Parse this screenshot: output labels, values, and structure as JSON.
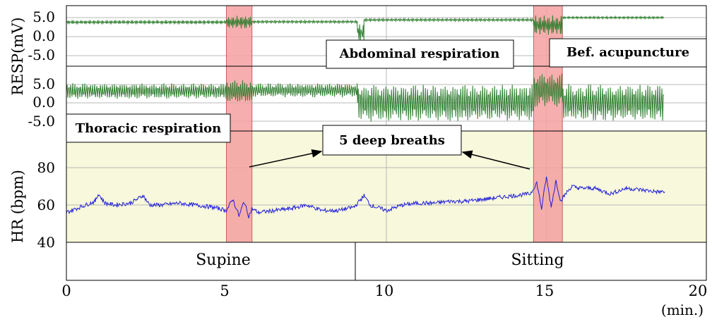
{
  "chart_data": {
    "type": "line",
    "x_axis": {
      "ticks": [
        "0",
        "5",
        "10",
        "15",
        "20"
      ],
      "unit_label": "(min.)",
      "range": [
        0,
        20
      ]
    },
    "panels": [
      {
        "id": "abdominal",
        "ylabel": "RESP(mV)",
        "ticks": [
          "5.0",
          "0.0",
          "-5.0"
        ],
        "tick_values": [
          5,
          0,
          -5
        ],
        "series_name": "Abdominal respiration",
        "color": "#2e7d2e",
        "segments": [
          {
            "x": [
              0,
              5.0
            ],
            "mean": 3.8,
            "amp": 0.45
          },
          {
            "x": [
              5.0,
              5.8
            ],
            "mean": 3.8,
            "amp": 1.6
          },
          {
            "x": [
              5.8,
              9.1
            ],
            "mean": 3.9,
            "amp": 0.35
          },
          {
            "x": [
              9.1,
              9.3
            ],
            "mean": 1.0,
            "amp": 2.2
          },
          {
            "x": [
              9.3,
              14.6
            ],
            "mean": 4.4,
            "amp": 0.35
          },
          {
            "x": [
              14.6,
              15.5
            ],
            "mean": 3.0,
            "amp": 2.4
          },
          {
            "x": [
              15.5,
              18.7
            ],
            "mean": 5.0,
            "amp": 0.3
          }
        ]
      },
      {
        "id": "thoracic",
        "ylabel": "RESP",
        "ticks": [
          "5.0",
          "0.0",
          "-5.0"
        ],
        "tick_values": [
          5,
          0,
          -5
        ],
        "series_name": "Thoracic respiration",
        "color": "#2e7d2e",
        "segments": [
          {
            "x": [
              0,
              5.0
            ],
            "mean": 3.2,
            "amp": 2.0
          },
          {
            "x": [
              5.0,
              5.8
            ],
            "mean": 3.0,
            "amp": 3.0
          },
          {
            "x": [
              5.8,
              9.1
            ],
            "mean": 3.4,
            "amp": 1.8
          },
          {
            "x": [
              9.1,
              14.6
            ],
            "mean": 0.0,
            "amp": 4.8
          },
          {
            "x": [
              14.6,
              15.5
            ],
            "mean": 3.5,
            "amp": 4.3
          },
          {
            "x": [
              15.5,
              18.7
            ],
            "mean": 0.0,
            "amp": 4.8
          }
        ]
      },
      {
        "id": "hr",
        "ylabel": "HR (bpm)",
        "ticks": [
          "80",
          "60",
          "40"
        ],
        "tick_values": [
          80,
          60,
          40
        ],
        "ylim": [
          40,
          98
        ],
        "series_name": "HR",
        "color": "#1f1fd8",
        "points": [
          [
            0,
            56
          ],
          [
            0.3,
            58
          ],
          [
            0.6,
            60
          ],
          [
            0.9,
            62
          ],
          [
            1.0,
            66
          ],
          [
            1.2,
            61
          ],
          [
            1.5,
            60
          ],
          [
            2.0,
            61
          ],
          [
            2.4,
            65
          ],
          [
            2.6,
            60
          ],
          [
            3.0,
            60
          ],
          [
            3.5,
            61
          ],
          [
            4.0,
            60
          ],
          [
            4.5,
            59
          ],
          [
            4.8,
            58
          ],
          [
            5.0,
            57
          ],
          [
            5.2,
            63
          ],
          [
            5.4,
            54
          ],
          [
            5.55,
            62
          ],
          [
            5.7,
            54
          ],
          [
            5.8,
            58
          ],
          [
            6.0,
            56
          ],
          [
            6.5,
            57
          ],
          [
            7.0,
            58
          ],
          [
            7.5,
            60
          ],
          [
            8.0,
            57
          ],
          [
            8.5,
            57
          ],
          [
            9.0,
            59
          ],
          [
            9.3,
            65
          ],
          [
            9.5,
            60
          ],
          [
            10.0,
            57
          ],
          [
            10.5,
            60
          ],
          [
            11.0,
            61
          ],
          [
            11.5,
            61
          ],
          [
            12.0,
            62
          ],
          [
            12.5,
            62
          ],
          [
            13.0,
            63
          ],
          [
            13.5,
            64
          ],
          [
            14.0,
            65
          ],
          [
            14.5,
            66
          ],
          [
            14.7,
            72
          ],
          [
            14.85,
            58
          ],
          [
            15.0,
            75
          ],
          [
            15.15,
            59
          ],
          [
            15.3,
            73
          ],
          [
            15.45,
            62
          ],
          [
            15.6,
            66
          ],
          [
            15.8,
            70
          ],
          [
            16.0,
            69
          ],
          [
            16.5,
            69
          ],
          [
            17.0,
            66
          ],
          [
            17.5,
            69
          ],
          [
            18.0,
            68
          ],
          [
            18.5,
            67
          ],
          [
            18.7,
            67
          ]
        ]
      }
    ],
    "deep_breath_windows": [
      [
        5.0,
        5.8
      ],
      [
        14.6,
        15.5
      ]
    ],
    "annotations": {
      "abdominal": "Abdominal respiration",
      "thoracic": "Thoracic respiration",
      "condition": "Bef. acupuncture",
      "deep_breaths": "5 deep breaths"
    },
    "postures": [
      {
        "label": "Supine",
        "range": [
          0,
          9.1
        ]
      },
      {
        "label": "Sitting",
        "range": [
          9.1,
          20
        ]
      }
    ],
    "colors": {
      "highlight": "#f4a0a0",
      "hr_background": "#f8f8dc",
      "grid": "#b8b8b8"
    }
  }
}
